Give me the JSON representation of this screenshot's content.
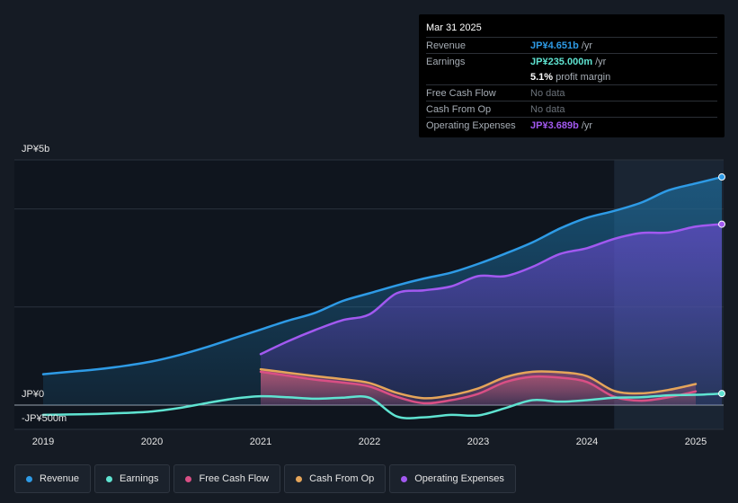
{
  "tooltip": {
    "date": "Mar 31 2025",
    "rows": [
      {
        "label": "Revenue",
        "value": "JP¥4.651b",
        "unit": "/yr",
        "color": "#2e9be6"
      },
      {
        "label": "Earnings",
        "value": "JP¥235.000m",
        "unit": "/yr",
        "color": "#5fe3d1"
      },
      {
        "label": "",
        "value": "5.1%",
        "unit": "profit margin",
        "color": "#ffffff"
      },
      {
        "label": "Free Cash Flow",
        "value": "No data",
        "unit": "",
        "color": "#6b727a"
      },
      {
        "label": "Cash From Op",
        "value": "No data",
        "unit": "",
        "color": "#6b727a"
      },
      {
        "label": "Operating Expenses",
        "value": "JP¥3.689b",
        "unit": "/yr",
        "color": "#a259f0"
      }
    ]
  },
  "chart_data": {
    "type": "area",
    "title": "",
    "ylim": [
      -500,
      5000
    ],
    "y_axis_labels": [
      "JP¥5b",
      "JP¥0",
      "-JP¥500m"
    ],
    "x_ticks": [
      "2019",
      "2020",
      "2021",
      "2022",
      "2023",
      "2024",
      "2025"
    ],
    "forecast_shading_start": 2024.25,
    "series": [
      {
        "name": "Revenue",
        "color": "#2e9be6",
        "x": [
          2019.0,
          2019.25,
          2019.5,
          2019.75,
          2020.0,
          2020.25,
          2020.5,
          2020.75,
          2021.0,
          2021.25,
          2021.5,
          2021.75,
          2022.0,
          2022.25,
          2022.5,
          2022.75,
          2023.0,
          2023.25,
          2023.5,
          2023.75,
          2024.0,
          2024.25,
          2024.5,
          2024.75,
          2025.0,
          2025.25
        ],
        "values": [
          630,
          680,
          730,
          800,
          890,
          1020,
          1180,
          1360,
          1540,
          1720,
          1880,
          2120,
          2280,
          2440,
          2580,
          2700,
          2880,
          3090,
          3320,
          3600,
          3820,
          3960,
          4130,
          4380,
          4520,
          4651
        ]
      },
      {
        "name": "Earnings",
        "color": "#5fe3d1",
        "x": [
          2019.0,
          2019.25,
          2019.5,
          2019.75,
          2020.0,
          2020.25,
          2020.5,
          2020.75,
          2021.0,
          2021.25,
          2021.5,
          2021.75,
          2022.0,
          2022.25,
          2022.5,
          2022.75,
          2023.0,
          2023.25,
          2023.5,
          2023.75,
          2024.0,
          2024.25,
          2024.5,
          2024.75,
          2025.0,
          2025.25
        ],
        "values": [
          -200,
          -190,
          -180,
          -160,
          -130,
          -60,
          40,
          130,
          180,
          160,
          130,
          150,
          150,
          -230,
          -250,
          -200,
          -210,
          -60,
          100,
          70,
          100,
          150,
          160,
          200,
          210,
          235
        ]
      },
      {
        "name": "Free Cash Flow",
        "color": "#d94f85",
        "x": [
          2021.0,
          2021.25,
          2021.5,
          2021.75,
          2022.0,
          2022.25,
          2022.5,
          2022.75,
          2023.0,
          2023.25,
          2023.5,
          2023.75,
          2024.0,
          2024.25,
          2024.5,
          2024.75,
          2025.0
        ],
        "values": [
          680,
          600,
          520,
          460,
          380,
          170,
          40,
          100,
          230,
          470,
          580,
          560,
          470,
          170,
          90,
          160,
          280
        ]
      },
      {
        "name": "Cash From Op",
        "color": "#e5a55a",
        "x": [
          2021.0,
          2021.25,
          2021.5,
          2021.75,
          2022.0,
          2022.25,
          2022.5,
          2022.75,
          2023.0,
          2023.25,
          2023.5,
          2023.75,
          2024.0,
          2024.25,
          2024.5,
          2024.75,
          2025.0
        ],
        "values": [
          730,
          660,
          590,
          530,
          450,
          250,
          140,
          200,
          340,
          570,
          680,
          670,
          590,
          290,
          240,
          310,
          430
        ]
      },
      {
        "name": "Operating Expenses",
        "color": "#a259f0",
        "x": [
          2021.0,
          2021.25,
          2021.5,
          2021.75,
          2022.0,
          2022.25,
          2022.5,
          2022.75,
          2023.0,
          2023.25,
          2023.5,
          2023.75,
          2024.0,
          2024.25,
          2024.5,
          2024.75,
          2025.0,
          2025.25
        ],
        "values": [
          1040,
          1300,
          1530,
          1730,
          1850,
          2280,
          2340,
          2420,
          2630,
          2630,
          2820,
          3080,
          3200,
          3390,
          3510,
          3520,
          3640,
          3689
        ]
      }
    ]
  },
  "legend": [
    {
      "label": "Revenue",
      "color": "#2e9be6"
    },
    {
      "label": "Earnings",
      "color": "#5fe3d1"
    },
    {
      "label": "Free Cash Flow",
      "color": "#d94f85"
    },
    {
      "label": "Cash From Op",
      "color": "#e5a55a"
    },
    {
      "label": "Operating Expenses",
      "color": "#a259f0"
    }
  ]
}
